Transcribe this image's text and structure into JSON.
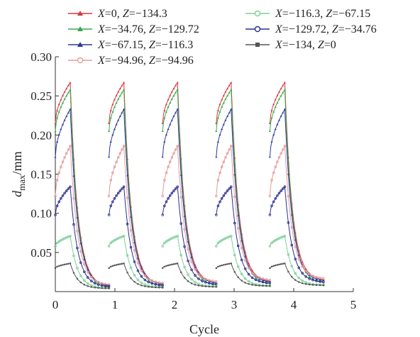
{
  "chart_data": {
    "type": "line",
    "title": "",
    "xlabel": "Cycle",
    "ylabel": "d",
    "ylabel_sub": "max",
    "ylabel_unit": "/mm",
    "xlim": [
      0,
      5
    ],
    "ylim": [
      0,
      0.3
    ],
    "xticks": [
      "0",
      "1",
      "2",
      "3",
      "4",
      "5"
    ],
    "yticks": [
      "0.05",
      "0.10",
      "0.15",
      "0.20",
      "0.25",
      "0.30"
    ],
    "grid": false,
    "legend_placement": "top",
    "cycle_period": 0.9,
    "load_duration": 0.25,
    "num_cycles": 5,
    "series": [
      {
        "name": "X=0, Z=-134.3",
        "label_parts": [
          "X",
          "=0, ",
          "Z",
          "=−134.3"
        ],
        "color": "#d9363e",
        "marker": "triangle-filled",
        "start": 0.215,
        "peak": 0.267,
        "end": 0.006,
        "floor_growth": 0.002
      },
      {
        "name": "X=-34.76, Z=-129.72",
        "label_parts": [
          "X",
          "=−34.76, ",
          "Z",
          "=−129.72"
        ],
        "color": "#3aa84a",
        "marker": "triangle-filled",
        "start": 0.205,
        "peak": 0.258,
        "end": 0.004,
        "floor_growth": 0.0015
      },
      {
        "name": "X=-67.15, Z=-116.3",
        "label_parts": [
          "X",
          "=−67.15, ",
          "Z",
          "=−116.3"
        ],
        "color": "#2a3a9c",
        "marker": "triangle-filled",
        "start": 0.172,
        "peak": 0.233,
        "end": 0.007,
        "floor_growth": 0.0015
      },
      {
        "name": "X=-94.96, Z=-94.96",
        "label_parts": [
          "X",
          "=−94.96, ",
          "Z",
          "=−94.96"
        ],
        "color": "#e69a9a",
        "marker": "circle-open",
        "start": 0.122,
        "peak": 0.186,
        "end": 0.008,
        "floor_growth": 0.002
      },
      {
        "name": "X=-116.3, Z=-67.15",
        "label_parts": [
          "X",
          "=−116.3, ",
          "Z",
          "=−67.15"
        ],
        "color": "#7ccf9a",
        "marker": "circle-open",
        "start": 0.058,
        "peak": 0.071,
        "end": 0.004,
        "floor_growth": 0.001
      },
      {
        "name": "X=-129.72, Z=-34.76",
        "label_parts": [
          "X",
          "=−129.72, ",
          "Z",
          "=−34.76"
        ],
        "color": "#2b2f8c",
        "marker": "circle-open",
        "start": 0.098,
        "peak": 0.134,
        "end": 0.006,
        "floor_growth": 0.0015
      },
      {
        "name": "X=-134, Z=0",
        "label_parts": [
          "X",
          "=−134, ",
          "Z",
          "=0"
        ],
        "color": "#555555",
        "marker": "square-filled",
        "start": 0.03,
        "peak": 0.036,
        "end": 0.004,
        "floor_growth": 0.001
      }
    ]
  }
}
